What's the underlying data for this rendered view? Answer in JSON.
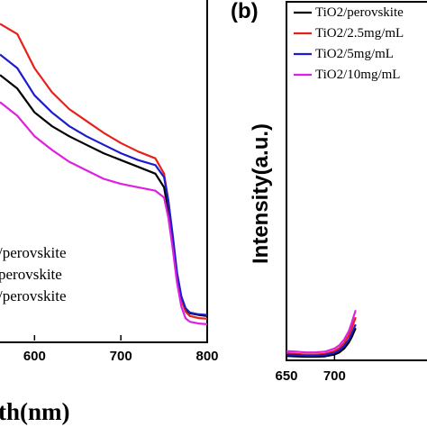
{
  "chart_data": [
    {
      "type": "line",
      "panel_label": "",
      "xlabel": "th(nm)",
      "ylabel": "",
      "xlim": [
        560,
        800
      ],
      "ylim": [
        0,
        1
      ],
      "x_ticks": [
        600,
        700,
        800
      ],
      "x_tick_labels": [
        "600",
        "700",
        "800"
      ],
      "legend_placement": "lower-left",
      "grid": false,
      "series": [
        {
          "name": "/perovskite",
          "color": "#000000",
          "x": [
            560,
            580,
            600,
            620,
            640,
            660,
            680,
            700,
            720,
            740,
            750,
            755,
            760,
            765,
            770,
            775,
            780,
            790,
            800
          ],
          "y": [
            0.78,
            0.74,
            0.67,
            0.63,
            0.6,
            0.575,
            0.55,
            0.53,
            0.51,
            0.49,
            0.45,
            0.38,
            0.28,
            0.18,
            0.12,
            0.09,
            0.08,
            0.075,
            0.072
          ]
        },
        {
          "name": "perovskite",
          "color": "#e8201a",
          "x": [
            560,
            580,
            600,
            620,
            640,
            660,
            680,
            700,
            720,
            740,
            750,
            755,
            760,
            765,
            770,
            775,
            780,
            790,
            800
          ],
          "y": [
            0.93,
            0.9,
            0.8,
            0.73,
            0.68,
            0.645,
            0.61,
            0.58,
            0.555,
            0.535,
            0.49,
            0.41,
            0.3,
            0.19,
            0.12,
            0.085,
            0.072,
            0.066,
            0.064
          ]
        },
        {
          "name": "/perovskite",
          "color": "#1c1ccc",
          "x": [
            560,
            580,
            600,
            620,
            640,
            660,
            680,
            700,
            720,
            740,
            750,
            755,
            760,
            765,
            770,
            775,
            780,
            790,
            800
          ],
          "y": [
            0.84,
            0.8,
            0.72,
            0.67,
            0.63,
            0.6,
            0.575,
            0.55,
            0.53,
            0.515,
            0.48,
            0.41,
            0.31,
            0.2,
            0.13,
            0.095,
            0.082,
            0.077,
            0.075
          ]
        },
        {
          "name": "",
          "color": "#e020e0",
          "x": [
            560,
            580,
            600,
            620,
            640,
            660,
            680,
            700,
            720,
            740,
            750,
            755,
            760,
            765,
            770,
            775,
            780,
            790,
            800
          ],
          "y": [
            0.7,
            0.66,
            0.6,
            0.56,
            0.525,
            0.5,
            0.475,
            0.46,
            0.45,
            0.44,
            0.42,
            0.36,
            0.27,
            0.17,
            0.1,
            0.065,
            0.055,
            0.05,
            0.048
          ]
        }
      ]
    },
    {
      "type": "line",
      "panel_label": "(b)",
      "xlabel": "",
      "ylabel": "Intensity(a.u.)",
      "xlim": [
        650,
        800
      ],
      "ylim": [
        0,
        1
      ],
      "x_ticks": [
        650,
        700
      ],
      "x_tick_labels": [
        "650",
        "700"
      ],
      "legend_placement": "top-right",
      "grid": false,
      "series": [
        {
          "name": "TiO2/perovskite",
          "color": "#000000",
          "x": [
            650,
            660,
            670,
            680,
            690,
            700,
            705,
            710,
            715,
            718,
            722
          ],
          "y": [
            0.012,
            0.011,
            0.01,
            0.01,
            0.011,
            0.016,
            0.022,
            0.033,
            0.05,
            0.065,
            0.09
          ]
        },
        {
          "name": "TiO2/2.5mg/mL",
          "color": "#e8201a",
          "x": [
            650,
            660,
            670,
            680,
            690,
            700,
            705,
            710,
            715,
            718,
            722
          ],
          "y": [
            0.02,
            0.018,
            0.016,
            0.016,
            0.018,
            0.026,
            0.034,
            0.048,
            0.07,
            0.09,
            0.12
          ]
        },
        {
          "name": "TiO2/5mg/mL",
          "color": "#1c1ccc",
          "x": [
            650,
            660,
            670,
            680,
            690,
            700,
            705,
            710,
            715,
            718,
            722
          ],
          "y": [
            0.016,
            0.015,
            0.013,
            0.013,
            0.015,
            0.021,
            0.028,
            0.04,
            0.058,
            0.075,
            0.1
          ]
        },
        {
          "name": "TiO2/10mg/mL",
          "color": "#e020e0",
          "x": [
            650,
            660,
            670,
            680,
            690,
            700,
            705,
            710,
            715,
            718,
            722
          ],
          "y": [
            0.026,
            0.024,
            0.022,
            0.022,
            0.024,
            0.033,
            0.042,
            0.058,
            0.082,
            0.105,
            0.14
          ]
        }
      ]
    }
  ]
}
